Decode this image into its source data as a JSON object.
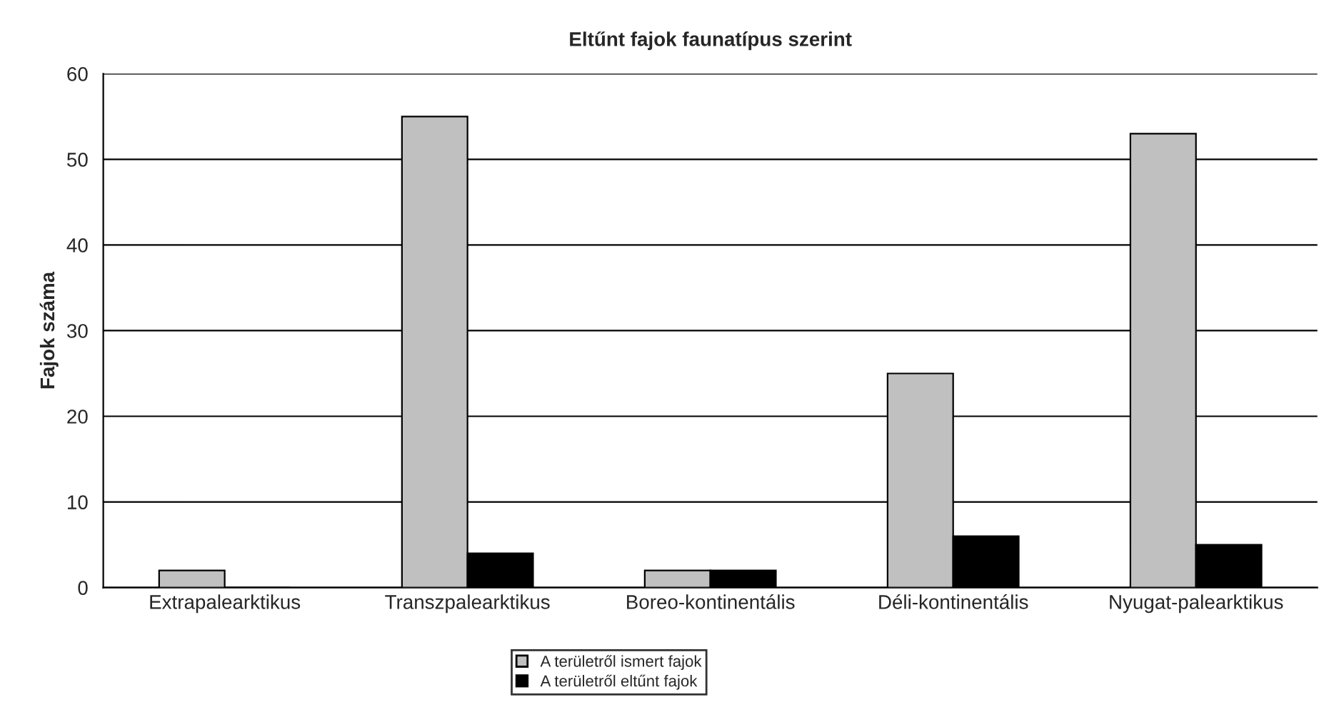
{
  "chart_data": {
    "type": "bar",
    "title": "Eltűnt fajok faunatípus szerint",
    "ylabel": "Fajok száma",
    "categories": [
      "Extrapalearktikus",
      "Transzpalearktikus",
      "Boreo-kontinentális",
      "Déli-kontinentális",
      "Nyugat-palearktikus"
    ],
    "series": [
      {
        "name": "A területről ismert fajok",
        "color": "#c0c0c0",
        "values": [
          2,
          55,
          2,
          25,
          53
        ]
      },
      {
        "name": "A területről eltűnt fajok",
        "color": "#000000",
        "values": [
          0,
          4,
          2,
          6,
          5
        ]
      }
    ],
    "ylim": [
      0,
      60
    ],
    "yticks": [
      0,
      10,
      20,
      30,
      40,
      50,
      60
    ],
    "grid": "y",
    "legend": "bottom"
  }
}
